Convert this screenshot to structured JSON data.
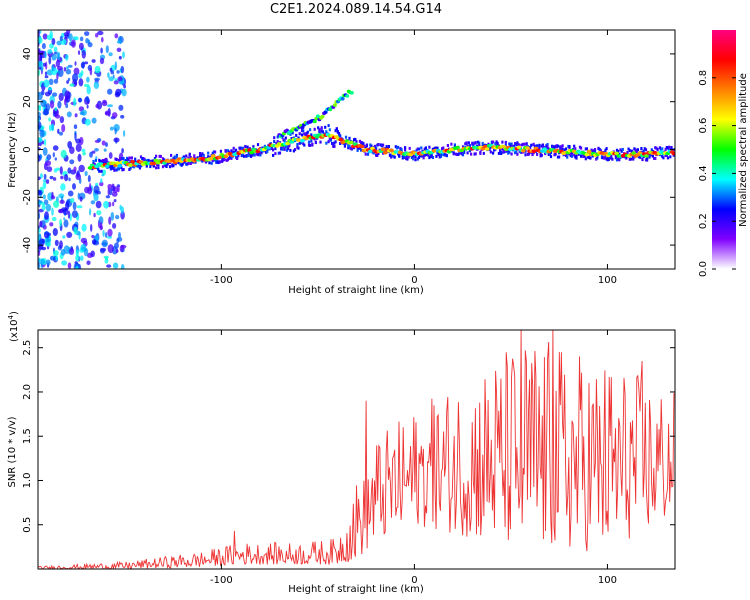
{
  "title": "C2E1.2024.089.14.54.G14",
  "chart_data": [
    {
      "type": "heatmap",
      "name": "spectrogram",
      "xlabel": "Height of straight line (km)",
      "ylabel": "Frequency (Hz)",
      "xlim": [
        -195,
        135
      ],
      "ylim": [
        -50,
        50
      ],
      "xticks": [
        -100,
        0,
        100
      ],
      "yticks": [
        -40,
        -20,
        0,
        20,
        40
      ],
      "colorbar": {
        "label": "Normalized spectral amplitude",
        "range": [
          0,
          1
        ],
        "ticks": [
          "0.0",
          "0.2",
          "0.4",
          "0.6",
          "0.8"
        ],
        "colors": [
          "#ffffff",
          "#8000ff",
          "#0000ff",
          "#00ffff",
          "#00ff00",
          "#ffff00",
          "#ff8000",
          "#ff0000",
          "#ff0080"
        ]
      },
      "ridge": [
        {
          "x": -168,
          "y": -7
        },
        {
          "x": -150,
          "y": -6
        },
        {
          "x": -130,
          "y": -5
        },
        {
          "x": -110,
          "y": -4
        },
        {
          "x": -95,
          "y": -2
        },
        {
          "x": -80,
          "y": 0
        },
        {
          "x": -65,
          "y": 3
        },
        {
          "x": -55,
          "y": 5
        },
        {
          "x": -45,
          "y": 6
        },
        {
          "x": -35,
          "y": 3
        },
        {
          "x": -25,
          "y": 0
        },
        {
          "x": -10,
          "y": -1
        },
        {
          "x": 0,
          "y": -2
        },
        {
          "x": 20,
          "y": 0
        },
        {
          "x": 40,
          "y": 1
        },
        {
          "x": 60,
          "y": 0
        },
        {
          "x": 80,
          "y": -1
        },
        {
          "x": 100,
          "y": -2
        },
        {
          "x": 120,
          "y": -2
        },
        {
          "x": 135,
          "y": -1
        }
      ],
      "branch": [
        {
          "x": -70,
          "y": 6
        },
        {
          "x": -60,
          "y": 9
        },
        {
          "x": -50,
          "y": 13
        },
        {
          "x": -45,
          "y": 16
        },
        {
          "x": -32,
          "y": 25
        }
      ]
    },
    {
      "type": "line",
      "name": "snr",
      "xlabel": "Height of straight line (km)",
      "ylabel": "SNR (10 * v/v)",
      "yscale_label": "(x10^4)",
      "xlim": [
        -195,
        135
      ],
      "ylim": [
        0,
        2.7
      ],
      "xticks": [
        -100,
        0,
        100
      ],
      "yticks": [
        "0.5",
        "1.0",
        "1.5",
        "2.0",
        "2.5"
      ],
      "color": "#ee3333",
      "envelope": [
        {
          "x": -195,
          "lo": 0.0,
          "hi": 0.03
        },
        {
          "x": -150,
          "lo": 0.0,
          "hi": 0.08
        },
        {
          "x": -110,
          "lo": 0.02,
          "hi": 0.2
        },
        {
          "x": -90,
          "lo": 0.05,
          "hi": 0.3
        },
        {
          "x": -60,
          "lo": 0.05,
          "hi": 0.3
        },
        {
          "x": -40,
          "lo": 0.05,
          "hi": 0.35
        },
        {
          "x": -30,
          "lo": 0.1,
          "hi": 1.0
        },
        {
          "x": -20,
          "lo": 0.3,
          "hi": 1.5
        },
        {
          "x": 0,
          "lo": 0.5,
          "hi": 1.8
        },
        {
          "x": 20,
          "lo": 0.4,
          "hi": 2.1
        },
        {
          "x": 40,
          "lo": 0.3,
          "hi": 2.4
        },
        {
          "x": 60,
          "lo": 0.2,
          "hi": 2.7
        },
        {
          "x": 80,
          "lo": 0.2,
          "hi": 2.5
        },
        {
          "x": 100,
          "lo": 0.2,
          "hi": 2.4
        },
        {
          "x": 135,
          "lo": 0.6,
          "hi": 2.0
        }
      ],
      "peaks": [
        {
          "x": -93,
          "y": 0.43
        },
        {
          "x": -25,
          "y": 1.9
        },
        {
          "x": 10,
          "y": 1.85
        },
        {
          "x": 55,
          "y": 2.7
        },
        {
          "x": 72,
          "y": 2.7
        },
        {
          "x": 118,
          "y": 2.35
        }
      ]
    }
  ]
}
